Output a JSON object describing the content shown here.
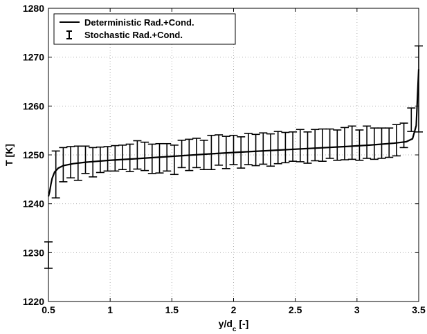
{
  "chart_data": {
    "type": "line",
    "xlabel": "y/d",
    "xlabel_sub": "c",
    "xlabel_suffix": " [-]",
    "ylabel": "T [K]",
    "xlim": [
      0.5,
      3.5
    ],
    "ylim": [
      1220,
      1280
    ],
    "xticks": [
      0.5,
      1,
      1.5,
      2,
      2.5,
      3,
      3.5
    ],
    "xtick_labels": [
      "0.5",
      "1",
      "1.5",
      "2",
      "2.5",
      "3",
      "3.5"
    ],
    "yticks": [
      1220,
      1230,
      1240,
      1250,
      1260,
      1270,
      1280
    ],
    "ytick_labels": [
      "1220",
      "1230",
      "1240",
      "1250",
      "1260",
      "1270",
      "1280"
    ],
    "grid": true,
    "legend_position": "top-left",
    "series": [
      {
        "name": "Deterministic Rad.+Cond.",
        "style": "line",
        "x": [
          0.5,
          0.51,
          0.52,
          0.53,
          0.55,
          0.58,
          0.62,
          0.7,
          0.8,
          1.0,
          1.2,
          1.5,
          1.8,
          2.0,
          2.3,
          2.6,
          2.9,
          3.1,
          3.3,
          3.4,
          3.45,
          3.48,
          3.5
        ],
        "y": [
          1241.5,
          1242.5,
          1244.0,
          1245.2,
          1246.5,
          1247.3,
          1247.8,
          1248.2,
          1248.5,
          1248.9,
          1249.2,
          1249.7,
          1250.2,
          1250.5,
          1250.9,
          1251.3,
          1251.7,
          1252.0,
          1252.4,
          1252.7,
          1253.3,
          1256.0,
          1267.5
        ]
      },
      {
        "name": "Stochastic Rad.+Cond.",
        "style": "errorbar",
        "x": [
          0.5,
          0.56,
          0.62,
          0.68,
          0.74,
          0.8,
          0.86,
          0.92,
          0.98,
          1.04,
          1.1,
          1.16,
          1.22,
          1.28,
          1.34,
          1.4,
          1.46,
          1.52,
          1.58,
          1.64,
          1.7,
          1.76,
          1.82,
          1.88,
          1.94,
          2.0,
          2.06,
          2.12,
          2.18,
          2.24,
          2.3,
          2.36,
          2.42,
          2.48,
          2.54,
          2.6,
          2.66,
          2.72,
          2.78,
          2.84,
          2.9,
          2.96,
          3.02,
          3.08,
          3.14,
          3.2,
          3.26,
          3.32,
          3.38,
          3.44,
          3.5
        ],
        "y": [
          1229.5,
          1246.0,
          1248.0,
          1248.5,
          1248.3,
          1249.0,
          1248.5,
          1249.0,
          1249.2,
          1249.3,
          1249.5,
          1249.4,
          1250.0,
          1249.7,
          1249.2,
          1249.3,
          1249.5,
          1249.0,
          1250.2,
          1250.0,
          1250.4,
          1250.0,
          1250.5,
          1251.0,
          1250.5,
          1251.0,
          1250.5,
          1251.2,
          1251.0,
          1251.3,
          1251.0,
          1251.5,
          1251.5,
          1251.7,
          1251.9,
          1251.5,
          1252.0,
          1252.0,
          1252.3,
          1252.0,
          1252.3,
          1252.5,
          1252.0,
          1252.6,
          1252.3,
          1252.4,
          1252.5,
          1253.0,
          1254.0,
          1257.2,
          1263.5
        ],
        "err": [
          2.7,
          4.8,
          3.5,
          3.2,
          3.5,
          2.8,
          3.0,
          2.6,
          2.5,
          2.6,
          2.5,
          2.8,
          2.9,
          2.9,
          3.0,
          3.0,
          2.8,
          3.0,
          2.8,
          3.2,
          3.0,
          3.0,
          3.5,
          3.1,
          3.3,
          3.0,
          3.2,
          3.2,
          3.2,
          3.2,
          3.3,
          3.3,
          3.1,
          3.0,
          3.3,
          3.2,
          3.2,
          3.3,
          3.0,
          3.1,
          3.3,
          3.4,
          3.1,
          3.3,
          3.2,
          3.1,
          3.0,
          3.2,
          2.5,
          2.4,
          8.8
        ]
      }
    ]
  }
}
